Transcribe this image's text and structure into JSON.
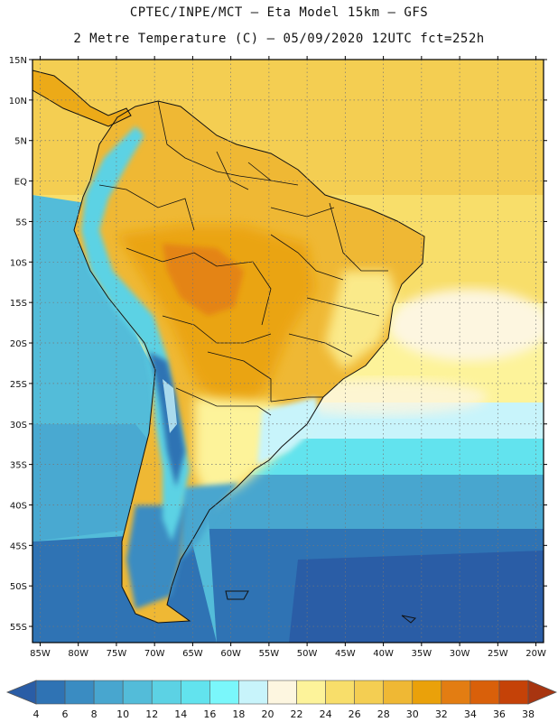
{
  "header": {
    "line1": "CPTEC/INPE/MCT –  Eta Model 15km – GFS",
    "line2": "2 Metre Temperature (C) – 05/09/2020 12UTC fct=252h"
  },
  "map": {
    "lat_labels": [
      "15N",
      "10N",
      "5N",
      "EQ",
      "5S",
      "10S",
      "15S",
      "20S",
      "25S",
      "30S",
      "35S",
      "40S",
      "45S",
      "50S",
      "55S"
    ],
    "lon_labels": [
      "85W",
      "80W",
      "75W",
      "70W",
      "65W",
      "60W",
      "55W",
      "50W",
      "45W",
      "40W",
      "35W",
      "30W",
      "25W",
      "20W"
    ],
    "lat_range": [
      15,
      -57
    ],
    "lon_range": [
      -86,
      -19
    ],
    "grid": "dotted"
  },
  "colorbar": {
    "labels": [
      "4",
      "6",
      "8",
      "10",
      "12",
      "14",
      "16",
      "18",
      "20",
      "22",
      "24",
      "26",
      "28",
      "30",
      "32",
      "34",
      "36",
      "38"
    ],
    "colors": [
      "#2a5da6",
      "#2f73b4",
      "#3a8cc2",
      "#48a6cf",
      "#53bcd9",
      "#5cd2e4",
      "#62e3ee",
      "#7af7fb",
      "#c8f4fb",
      "#fdf6e0",
      "#fdf39a",
      "#f8de6a",
      "#f4ce52",
      "#efb834",
      "#eaa10a",
      "#e37d12",
      "#d9600a",
      "#c54208",
      "#a83510"
    ]
  }
}
